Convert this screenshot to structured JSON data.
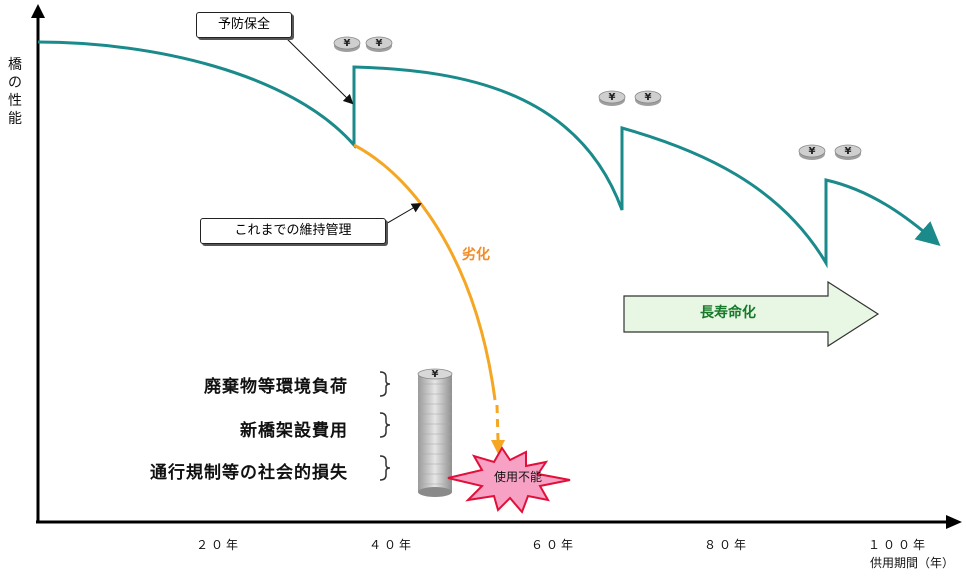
{
  "y_axis_label": "橋の性能",
  "x_axis": {
    "ticks": [
      "２０年",
      "４０年",
      "６０年",
      "８０年",
      "１００年"
    ],
    "unit_label": "供用期間（年）"
  },
  "callouts": {
    "preventive": "予防保全",
    "conventional": "これまでの維持管理"
  },
  "deterioration_label": "劣化",
  "unusable_label": "使用不能",
  "longevity_label": "長寿命化",
  "cost_items": [
    "廃棄物等環境負荷",
    "新橋架設費用",
    "通行規制等の社会的損失"
  ],
  "coin_symbol": "¥",
  "colors": {
    "preventive_curve": "#1a8a8a",
    "deterioration_curve": "#f5a623",
    "deterioration_text": "#f28c28",
    "burst_fill": "#f7a1c4",
    "burst_stroke": "#e0103a",
    "arrow_fill": "#e8f7e4",
    "arrow_text": "#177a2a",
    "coin": "#bdbdbd"
  }
}
